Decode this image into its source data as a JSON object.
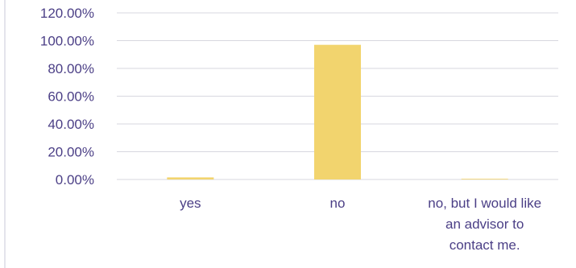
{
  "chart_data": {
    "type": "bar",
    "categories": [
      "yes",
      "no",
      "no, but I would like an advisor to contact me."
    ],
    "values": [
      0.015,
      0.97,
      0.005
    ],
    "ylim": [
      0,
      1.2
    ],
    "yticks": [
      0,
      0.2,
      0.4,
      0.6,
      0.8,
      1.0,
      1.2
    ],
    "ytick_labels": [
      "0.00%",
      "20.00%",
      "40.00%",
      "60.00%",
      "80.00%",
      "100.00%",
      "120.00%"
    ],
    "grid": true,
    "legend": "none",
    "colors": {
      "bar": "#f2d46e",
      "axis_text": "#4b3f86",
      "grid": "#d7d7df",
      "frame": "#dcdce6"
    }
  }
}
